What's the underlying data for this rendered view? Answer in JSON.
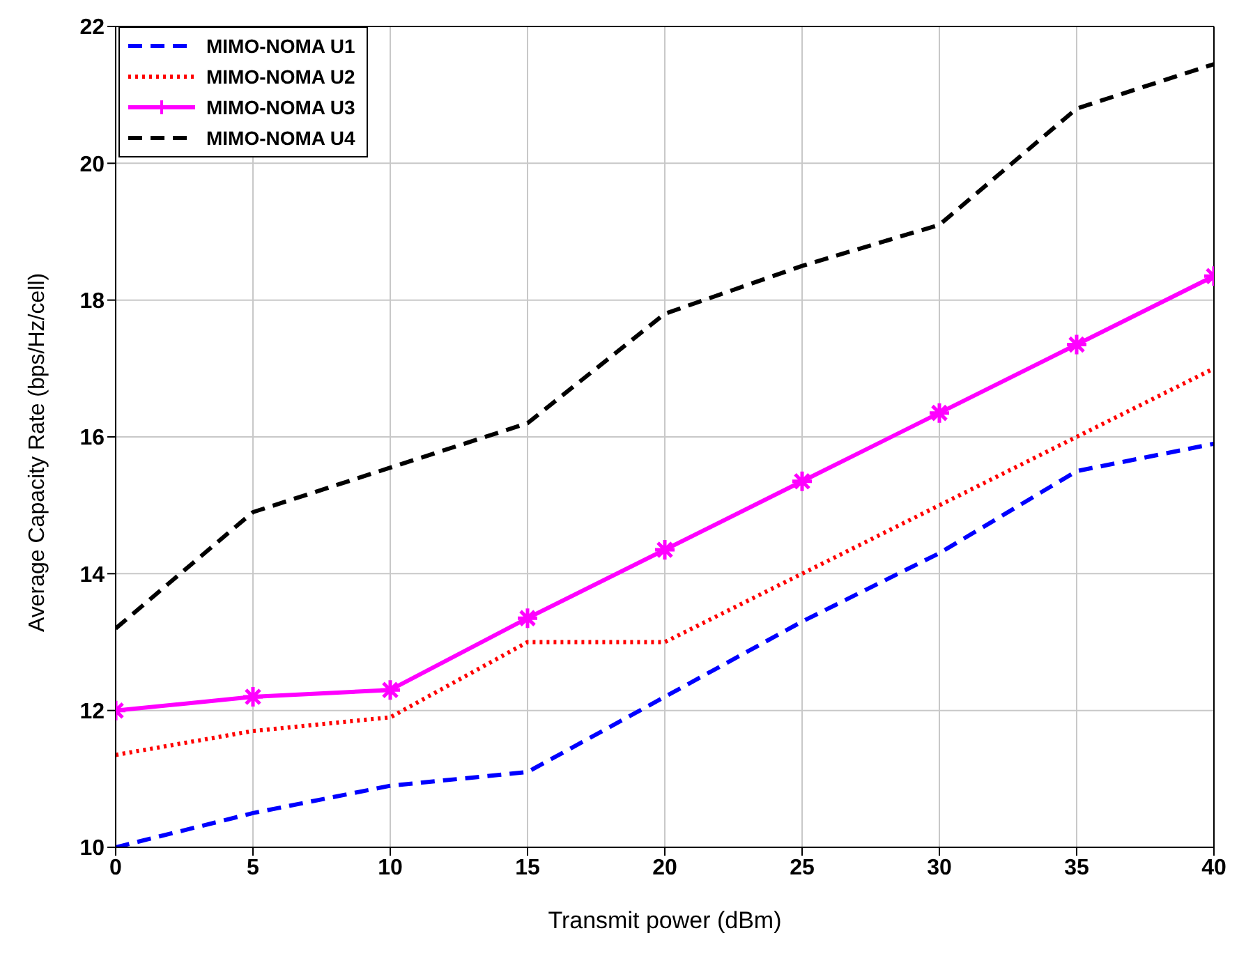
{
  "chart_data": {
    "type": "line",
    "xlabel": "Transmit power (dBm)",
    "ylabel": "Average Capacity Rate (bps/Hz/cell)",
    "x": [
      0,
      5,
      10,
      15,
      20,
      25,
      30,
      35,
      40
    ],
    "series": [
      {
        "name": "MIMO-NOMA U1",
        "color": "#0000ff",
        "line_style": "dashed",
        "marker": "none",
        "values": [
          10.0,
          10.5,
          10.9,
          11.1,
          12.2,
          13.3,
          14.3,
          15.5,
          15.9
        ]
      },
      {
        "name": "MIMO-NOMA U2",
        "color": "#ff0000",
        "line_style": "dotted",
        "marker": "none",
        "values": [
          11.35,
          11.7,
          11.9,
          13.0,
          13.0,
          14.0,
          15.0,
          16.0,
          17.0
        ]
      },
      {
        "name": "MIMO-NOMA U3",
        "color": "#ff00ff",
        "line_style": "solid",
        "marker": "cross",
        "values": [
          12.0,
          12.2,
          12.3,
          13.35,
          14.35,
          15.35,
          16.35,
          17.35,
          18.35
        ]
      },
      {
        "name": "MIMO-NOMA U4",
        "color": "#000000",
        "line_style": "dashed",
        "marker": "none",
        "values": [
          13.2,
          14.9,
          15.55,
          16.2,
          17.8,
          18.5,
          19.1,
          20.8,
          21.45
        ]
      }
    ],
    "xlim": [
      0,
      40
    ],
    "xticks": [
      0,
      5,
      10,
      15,
      20,
      25,
      30,
      35,
      40
    ],
    "ylim": [
      10,
      22
    ],
    "yticks": [
      10,
      12,
      14,
      16,
      18,
      20,
      22
    ],
    "grid": true,
    "legend": "top left"
  }
}
